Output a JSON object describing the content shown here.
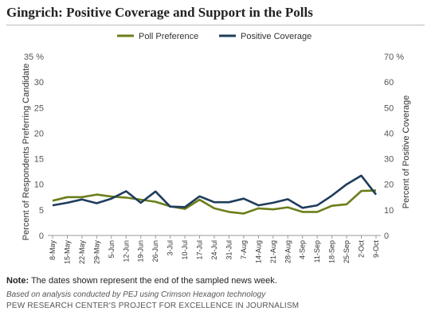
{
  "title": "Gingrich: Positive Coverage and Support in the Polls",
  "note_label": "Note:",
  "note_text": " The dates shown represent the end of the sampled news week.",
  "source": "Based on analysis conducted by PEJ using Crimson Hexagon technology",
  "credit": "PEW RESEARCH CENTER'S PROJECT FOR EXCELLENCE IN JOURNALISM",
  "chart_data": {
    "type": "line",
    "x": [
      "8-May",
      "15-May",
      "22-May",
      "29-May",
      "5-Jun",
      "12-Jun",
      "19-Jun",
      "26-Jun",
      "3-Jul",
      "10-Jul",
      "17-Jul",
      "24-Jul",
      "31-Jul",
      "7-Aug",
      "14-Aug",
      "21-Aug",
      "28-Aug",
      "4-Sep",
      "11-Sep",
      "18-Sep",
      "25-Sep",
      "2-Oct",
      "9-Oct"
    ],
    "ylabel_left": "Percent of Respondents Preferring Candidate",
    "ylabel_right": "Percent of Positive Coverage",
    "y_left": {
      "range": [
        0,
        35
      ],
      "ticks": [
        "0",
        "5",
        "10",
        "15",
        "20",
        "25",
        "30",
        "35 %"
      ]
    },
    "y_right": {
      "range": [
        0,
        70
      ],
      "ticks": [
        "0",
        "10",
        "20",
        "30",
        "40",
        "50",
        "60",
        "70 %"
      ]
    },
    "grid": false,
    "legend_position": "top",
    "series": [
      {
        "name": "Poll Preference",
        "axis": "left",
        "color": "#6b7f1a",
        "values": [
          6.8,
          7.5,
          7.5,
          8.0,
          7.6,
          7.4,
          7.0,
          6.6,
          5.7,
          5.2,
          7.0,
          5.3,
          4.6,
          4.3,
          5.3,
          5.1,
          5.5,
          4.6,
          4.6,
          5.8,
          6.1,
          8.7,
          8.8
        ]
      },
      {
        "name": "Positive Coverage",
        "axis": "right",
        "color": "#1f3c5c",
        "values": [
          11.8,
          12.8,
          14.1,
          12.6,
          14.4,
          17.3,
          12.8,
          17.2,
          11.3,
          11.1,
          15.3,
          13.0,
          13.0,
          14.4,
          11.8,
          12.8,
          14.2,
          10.8,
          11.8,
          15.6,
          20.0,
          23.4,
          16.0
        ]
      }
    ]
  }
}
